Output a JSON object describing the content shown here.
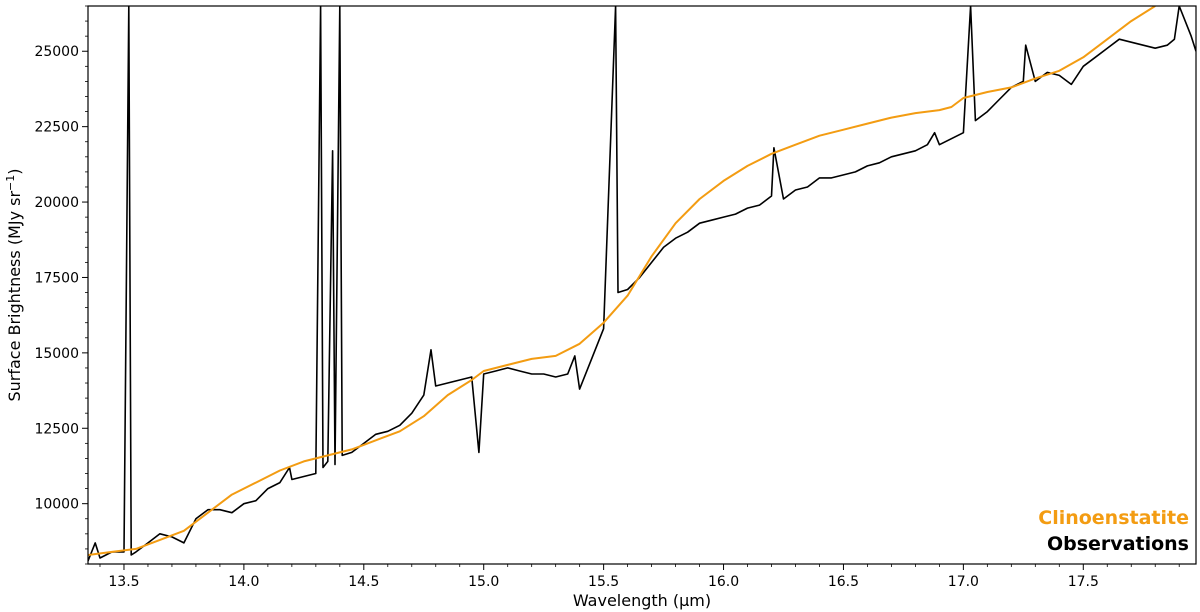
{
  "chart_data": {
    "type": "line",
    "xlabel": "Wavelength (μm)",
    "ylabel": "Surface Brightness (MJy sr",
    "ylabel_sup": "−1",
    "ylabel_end": ")",
    "xlim": [
      13.35,
      17.97
    ],
    "ylim": [
      8000,
      26500
    ],
    "x_ticks": [
      13.5,
      14.0,
      14.5,
      15.0,
      15.5,
      16.0,
      16.5,
      17.0,
      17.5
    ],
    "x_tick_labels": [
      "13.5",
      "14.0",
      "14.5",
      "15.0",
      "15.5",
      "16.0",
      "16.5",
      "17.0",
      "17.5"
    ],
    "y_ticks": [
      10000,
      12500,
      15000,
      17500,
      20000,
      22500,
      25000
    ],
    "y_tick_labels": [
      "10000",
      "12500",
      "15000",
      "17500",
      "20000",
      "22500",
      "25000"
    ],
    "legend": {
      "placement": "bottom-right",
      "entries": [
        {
          "label": "Clinoenstatite",
          "color": "#f39c12"
        },
        {
          "label": "Observations",
          "color": "#000000"
        }
      ]
    },
    "series": [
      {
        "name": "Clinoenstatite",
        "color": "#f39c12",
        "x": [
          13.35,
          13.45,
          13.55,
          13.65,
          13.75,
          13.85,
          13.95,
          14.05,
          14.15,
          14.25,
          14.35,
          14.45,
          14.55,
          14.65,
          14.75,
          14.85,
          14.95,
          15.0,
          15.1,
          15.2,
          15.3,
          15.4,
          15.5,
          15.6,
          15.7,
          15.8,
          15.9,
          16.0,
          16.1,
          16.2,
          16.3,
          16.4,
          16.5,
          16.6,
          16.7,
          16.8,
          16.85,
          16.9,
          16.95,
          17.0,
          17.05,
          17.1,
          17.2,
          17.3,
          17.4,
          17.5,
          17.6,
          17.7,
          17.8
        ],
        "y": [
          8300,
          8400,
          8500,
          8800,
          9100,
          9700,
          10300,
          10700,
          11100,
          11400,
          11600,
          11800,
          12100,
          12400,
          12900,
          13600,
          14100,
          14400,
          14600,
          14800,
          14900,
          15300,
          16000,
          16900,
          18200,
          19300,
          20100,
          20700,
          21200,
          21600,
          21900,
          22200,
          22400,
          22600,
          22800,
          22950,
          23000,
          23050,
          23150,
          23450,
          23550,
          23650,
          23800,
          24100,
          24350,
          24800,
          25400,
          26000,
          26500
        ]
      },
      {
        "name": "Observations",
        "color": "#000000",
        "x": [
          13.35,
          13.38,
          13.4,
          13.45,
          13.5,
          13.52,
          13.53,
          13.55,
          13.6,
          13.65,
          13.7,
          13.75,
          13.8,
          13.85,
          13.9,
          13.95,
          14.0,
          14.05,
          14.1,
          14.15,
          14.19,
          14.2,
          14.25,
          14.3,
          14.32,
          14.33,
          14.35,
          14.37,
          14.38,
          14.4,
          14.41,
          14.45,
          14.5,
          14.55,
          14.6,
          14.65,
          14.7,
          14.75,
          14.78,
          14.8,
          14.85,
          14.9,
          14.95,
          14.98,
          15.0,
          15.05,
          15.1,
          15.15,
          15.2,
          15.25,
          15.3,
          15.35,
          15.38,
          15.4,
          15.45,
          15.5,
          15.55,
          15.56,
          15.6,
          15.65,
          15.7,
          15.75,
          15.8,
          15.85,
          15.9,
          15.95,
          16.0,
          16.05,
          16.1,
          16.15,
          16.2,
          16.21,
          16.25,
          16.3,
          16.35,
          16.4,
          16.45,
          16.5,
          16.55,
          16.6,
          16.65,
          16.7,
          16.75,
          16.8,
          16.85,
          16.88,
          16.9,
          16.95,
          17.0,
          17.03,
          17.05,
          17.1,
          17.15,
          17.2,
          17.25,
          17.26,
          17.3,
          17.35,
          17.4,
          17.45,
          17.5,
          17.55,
          17.6,
          17.65,
          17.7,
          17.75,
          17.8,
          17.85,
          17.88,
          17.9,
          17.95,
          17.97
        ],
        "y": [
          8100,
          8700,
          8200,
          8400,
          8400,
          26500,
          8300,
          8400,
          8700,
          9000,
          8900,
          8700,
          9500,
          9800,
          9800,
          9700,
          10000,
          10100,
          10500,
          10700,
          11200,
          10800,
          10900,
          11000,
          26500,
          11200,
          11400,
          21700,
          11300,
          26500,
          11600,
          11700,
          12000,
          12300,
          12400,
          12600,
          13000,
          13600,
          15100,
          13900,
          14000,
          14100,
          14200,
          11700,
          14300,
          14400,
          14500,
          14400,
          14300,
          14300,
          14200,
          14300,
          14900,
          13800,
          14800,
          15800,
          26500,
          17000,
          17100,
          17500,
          18000,
          18500,
          18800,
          19000,
          19300,
          19400,
          19500,
          19600,
          19800,
          19900,
          20200,
          21800,
          20100,
          20400,
          20500,
          20800,
          20800,
          20900,
          21000,
          21200,
          21300,
          21500,
          21600,
          21700,
          21900,
          22300,
          21900,
          22100,
          22300,
          26500,
          22700,
          23000,
          23400,
          23800,
          24000,
          25200,
          24000,
          24300,
          24200,
          23900,
          24500,
          24800,
          25100,
          25400,
          25300,
          25200,
          25100,
          25200,
          25400,
          26500,
          25500,
          25000
        ]
      }
    ]
  }
}
